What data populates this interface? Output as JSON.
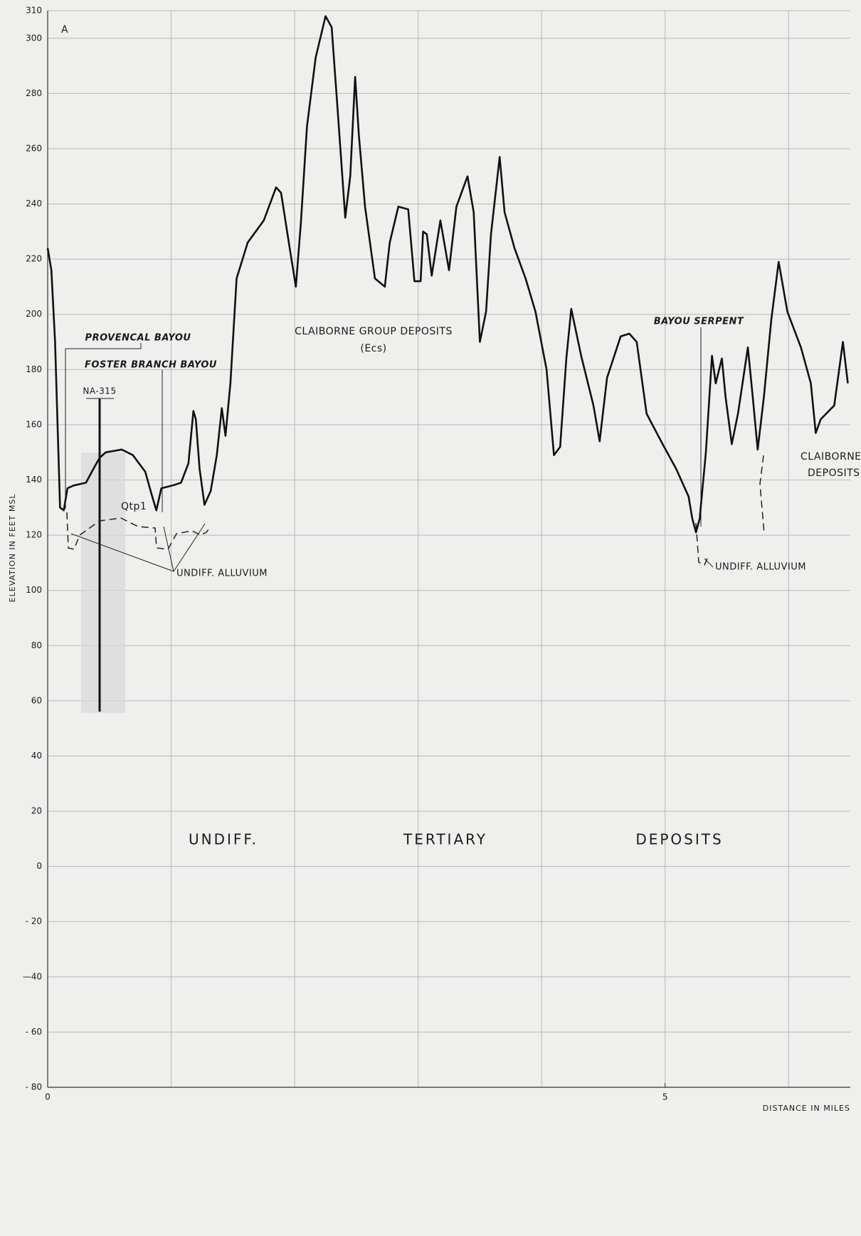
{
  "chart_data": {
    "type": "line",
    "x_label": "DISTANCE IN MILES",
    "y_label": "ELEVATION IN FEET MSL",
    "annotations": [
      "A",
      "PROVENCAL BAYOU",
      "FOSTER BRANCH BAYOU",
      "NA-315",
      "Qtp1",
      "UNDIFF. ALLUVIUM",
      "CLAIBORNE GROUP DEPOSITS",
      "(Ecs)",
      "BAYOU SERPENT",
      "UNDIFF. ALLUVIUM",
      "CLAIBORNE",
      "DEPOSITS",
      "UNDIFF.",
      "TERTIARY",
      "DEPOSITS"
    ],
    "xlim": [
      0,
      6.5
    ],
    "ylim": [
      -80,
      310
    ],
    "xticks": [
      0,
      5
    ],
    "xgrid": [
      0,
      1,
      2,
      3,
      4,
      5,
      6
    ],
    "yticks": [
      {
        "value": -80,
        "label": "- 80"
      },
      {
        "value": -60,
        "label": "- 60"
      },
      {
        "value": -40,
        "label": "—40"
      },
      {
        "value": -20,
        "label": "- 20"
      },
      0,
      20,
      40,
      60,
      80,
      100,
      120,
      140,
      160,
      180,
      200,
      220,
      240,
      260,
      280,
      300,
      310
    ],
    "grid": true,
    "x": [
      0,
      0.03,
      0.06,
      0.1,
      0.13,
      0.16,
      0.21,
      0.31,
      0.37,
      0.42,
      0.47,
      0.6,
      0.69,
      0.79,
      0.84,
      0.88,
      0.92,
      1.01,
      1.08,
      1.14,
      1.18,
      1.2,
      1.23,
      1.27,
      1.32,
      1.37,
      1.41,
      1.44,
      1.48,
      1.53,
      1.62,
      1.75,
      1.85,
      1.89,
      1.96,
      2.01,
      2.05,
      2.1,
      2.17,
      2.25,
      2.3,
      2.35,
      2.41,
      2.45,
      2.49,
      2.52,
      2.57,
      2.65,
      2.73,
      2.77,
      2.84,
      2.92,
      2.97,
      3.02,
      3.04,
      3.07,
      3.11,
      3.18,
      3.25,
      3.31,
      3.4,
      3.45,
      3.5,
      3.55,
      3.59,
      3.66,
      3.7,
      3.78,
      3.87,
      3.95,
      4.04,
      4.1,
      4.15,
      4.2,
      4.24,
      4.32,
      4.42,
      4.47,
      4.53,
      4.64,
      4.71,
      4.77,
      4.85,
      4.98,
      5.09,
      5.19,
      5.22,
      5.25,
      5.28,
      5.33,
      5.38,
      5.41,
      5.46,
      5.49,
      5.54,
      5.59,
      5.67,
      5.71,
      5.75,
      5.8,
      5.86,
      5.92,
      5.99,
      6.1,
      6.18,
      6.22,
      6.26,
      6.37,
      6.44,
      6.48
    ],
    "series": [
      {
        "color": "#111111",
        "values": [
          224,
          216,
          190,
          130,
          129,
          137,
          138,
          139,
          144,
          148,
          150,
          151,
          149,
          143,
          135,
          129,
          137,
          138,
          139,
          146,
          165,
          162,
          144,
          131,
          136,
          149,
          166,
          156,
          175,
          213,
          226,
          234,
          246,
          244,
          224,
          210,
          233,
          268,
          293,
          308,
          304,
          273,
          235,
          250,
          286,
          265,
          239,
          213,
          210,
          226,
          239,
          238,
          212,
          212,
          230,
          229,
          214,
          234,
          216,
          239,
          250,
          237,
          190,
          201,
          229,
          257,
          237,
          224,
          213,
          201,
          180,
          149,
          152,
          184,
          202,
          185,
          167,
          154,
          177,
          192,
          193,
          190,
          164,
          153,
          144,
          134,
          126,
          121,
          126,
          150,
          185,
          175,
          184,
          170,
          153,
          164,
          188,
          170,
          151,
          170,
          198,
          219,
          201,
          188,
          175,
          157,
          162,
          167,
          190,
          175
        ]
      }
    ]
  }
}
